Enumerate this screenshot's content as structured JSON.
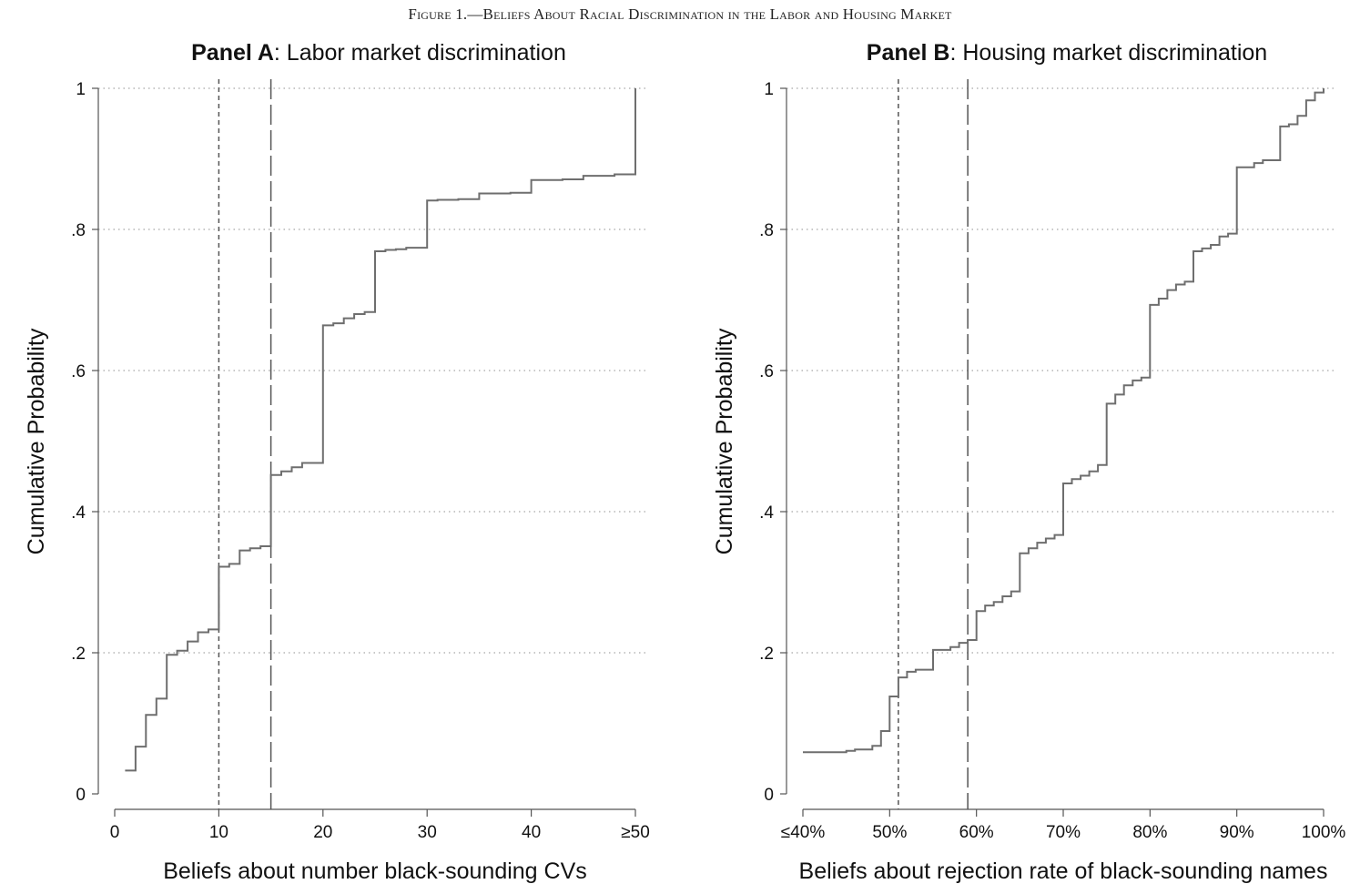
{
  "figure_caption": "Figure 1.—Beliefs About Racial Discrimination in the Labor and Housing Market",
  "colors": {
    "line": "#6e6e6e",
    "grid": "#b5b5b5",
    "axis": "#555555",
    "text": "#111111"
  },
  "chart_data": [
    {
      "id": "panelA",
      "type": "line",
      "step": true,
      "title_bold": "Panel A",
      "title_rest": ": Labor market discrimination",
      "xlabel": "Beliefs about number black-sounding CVs",
      "ylabel": "Cumulative Probability",
      "xlim": [
        0,
        50
      ],
      "ylim": [
        0,
        1
      ],
      "xticks": [
        0,
        10,
        20,
        30,
        40,
        50
      ],
      "xtick_labels": [
        "0",
        "10",
        "20",
        "30",
        "40",
        "≥50"
      ],
      "yticks": [
        0,
        0.2,
        0.4,
        0.6,
        0.8,
        1
      ],
      "ytick_labels": [
        "0",
        ".2",
        ".4",
        ".6",
        ".8",
        "1"
      ],
      "grid": "horizontal dotted",
      "reference_lines": [
        {
          "x": 10,
          "style": "short-dash"
        },
        {
          "x": 15,
          "style": "long-dash"
        }
      ],
      "series": [
        {
          "x": [
            1,
            2,
            3,
            4,
            5,
            6,
            7,
            8,
            9,
            10,
            11,
            12,
            13,
            14,
            15,
            16,
            17,
            18,
            20,
            21,
            22,
            23,
            24,
            25,
            26,
            27,
            28,
            30,
            31,
            33,
            35,
            38,
            40,
            43,
            45,
            48,
            50
          ],
          "y": [
            0.033,
            0.067,
            0.112,
            0.135,
            0.197,
            0.203,
            0.216,
            0.229,
            0.233,
            0.322,
            0.326,
            0.345,
            0.348,
            0.351,
            0.452,
            0.457,
            0.463,
            0.469,
            0.664,
            0.667,
            0.674,
            0.68,
            0.683,
            0.769,
            0.771,
            0.772,
            0.774,
            0.841,
            0.842,
            0.843,
            0.851,
            0.852,
            0.87,
            0.871,
            0.876,
            0.878,
            1.0
          ]
        }
      ]
    },
    {
      "id": "panelB",
      "type": "line",
      "step": true,
      "title_bold": "Panel B",
      "title_rest": ": Housing market discrimination",
      "xlabel": "Beliefs about rejection rate of black-sounding names",
      "ylabel": "Cumulative Probability",
      "xlim": [
        40,
        100
      ],
      "ylim": [
        0,
        1
      ],
      "xticks": [
        40,
        50,
        60,
        70,
        80,
        90,
        100
      ],
      "xtick_labels": [
        "≤40%",
        "50%",
        "60%",
        "70%",
        "80%",
        "90%",
        "100%"
      ],
      "yticks": [
        0,
        0.2,
        0.4,
        0.6,
        0.8,
        1
      ],
      "ytick_labels": [
        "0",
        ".2",
        ".4",
        ".6",
        ".8",
        "1"
      ],
      "grid": "horizontal dotted",
      "reference_lines": [
        {
          "x": 51,
          "style": "short-dash"
        },
        {
          "x": 59,
          "style": "long-dash"
        }
      ],
      "series": [
        {
          "x": [
            40,
            45,
            46,
            48,
            49,
            50,
            51,
            52,
            53,
            55,
            57,
            58,
            59,
            60,
            61,
            62,
            63,
            64,
            65,
            66,
            67,
            68,
            69,
            70,
            71,
            72,
            73,
            74,
            75,
            76,
            77,
            78,
            79,
            80,
            81,
            82,
            83,
            84,
            85,
            86,
            87,
            88,
            89,
            90,
            92,
            93,
            95,
            96,
            97,
            98,
            99,
            100
          ],
          "y": [
            0.059,
            0.061,
            0.063,
            0.068,
            0.089,
            0.138,
            0.165,
            0.173,
            0.176,
            0.204,
            0.208,
            0.214,
            0.218,
            0.259,
            0.267,
            0.272,
            0.28,
            0.287,
            0.341,
            0.348,
            0.356,
            0.362,
            0.367,
            0.44,
            0.446,
            0.451,
            0.457,
            0.466,
            0.553,
            0.566,
            0.579,
            0.586,
            0.59,
            0.693,
            0.702,
            0.714,
            0.722,
            0.726,
            0.769,
            0.773,
            0.778,
            0.79,
            0.794,
            0.888,
            0.894,
            0.898,
            0.946,
            0.949,
            0.961,
            0.983,
            0.994,
            1.0
          ]
        }
      ]
    }
  ]
}
